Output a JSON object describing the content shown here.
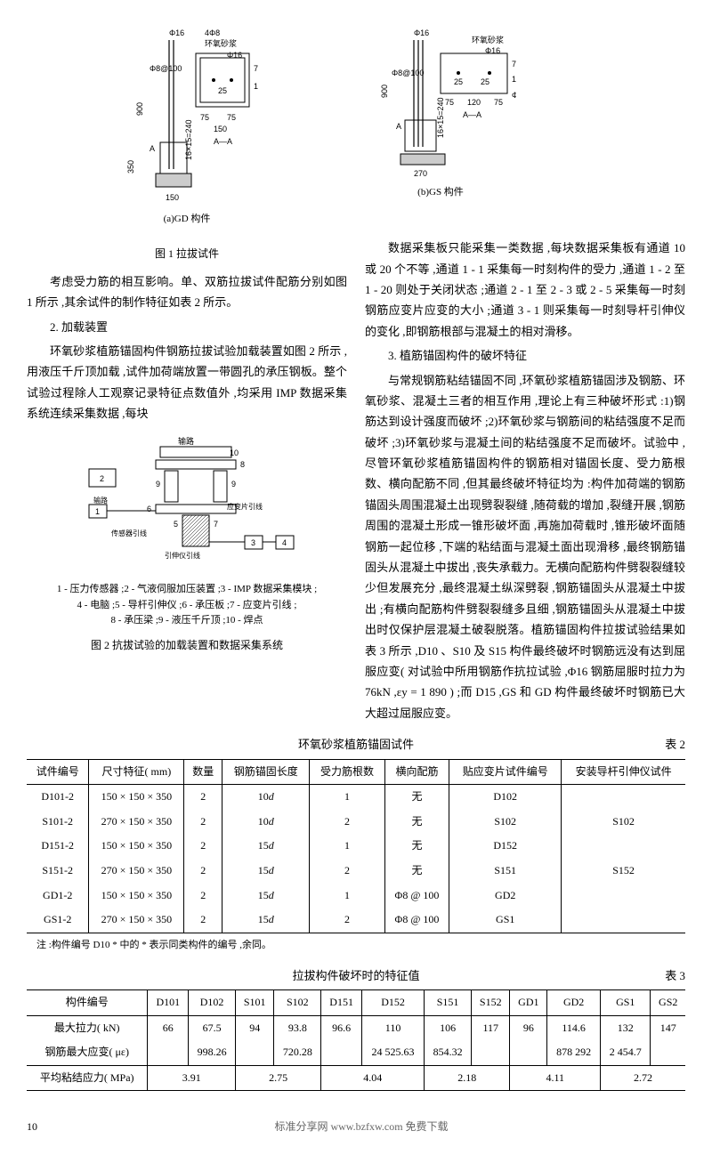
{
  "figures": {
    "fig1": {
      "caption": "图 1  拉拔试件",
      "sub_a": "(a)GD 构件",
      "sub_b": "(b)GS 构件",
      "labels": {
        "phi16": "Φ16",
        "4phi8": "4Φ8",
        "epoxy": "环氧砂浆",
        "phi8_100": "Φ8@100",
        "dim25": "25",
        "dim75": "75",
        "dim150": "150",
        "dim270": "270",
        "dim350": "350",
        "dim900": "900",
        "dim120": "120",
        "dim240": "240",
        "AA": "A—A",
        "A": "A",
        "t16x15": "16×15=240"
      }
    },
    "fig2": {
      "caption": "图 2  抗拔试验的加载装置和数据采集系统",
      "legend_lines": [
        "1 - 压力传感器 ;2 - 气液伺服加压装置 ;3 - IMP 数据采集模块 ;",
        "4 - 电脑 ;5 - 导杆引伸仪 ;6 - 承压板 ;7 - 应变片引线 ;",
        "8 - 承压梁 ;9 - 液压千斤顶 ;10 - 焊点"
      ],
      "labels": {
        "oil": "输路",
        "sensor_line": "传感器引线",
        "ext_line": "引伸仪引线",
        "strain_line": "应变片引线"
      }
    }
  },
  "body_text": {
    "left_p1": "考虑受力筋的相互影响。单、双筋拉拔试件配筋分别如图 1 所示 ,其余试件的制作特征如表 2 所示。",
    "left_sec2": "2. 加载装置",
    "left_p2": "环氧砂浆植筋锚固构件钢筋拉拔试验加载装置如图 2 所示 ,用液压千斤顶加载 ,试件加荷端放置一带圆孔的承压钢板。整个试验过程除人工观察记录特征点数值外 ,均采用 IMP 数据采集系统连续采集数据 ,每块",
    "right_p1": "数据采集板只能采集一类数据 ,每块数据采集板有通道 10 或 20 个不等 ,通道 1 - 1 采集每一时刻构件的受力 ,通道 1 - 2 至 1 - 20 则处于关闭状态 ;通道 2 - 1 至 2 - 3 或 2 - 5 采集每一时刻钢筋应变片应变的大小 ;通道 3 - 1 则采集每一时刻导杆引伸仪的变化 ,即钢筋根部与混凝土的相对滑移。",
    "right_sec3": "3. 植筋锚固构件的破坏特征",
    "right_p2": "与常规钢筋粘结锚固不同 ,环氧砂浆植筋锚固涉及钢筋、环氧砂浆、混凝土三者的相互作用 ,理论上有三种破坏形式 :1)钢筋达到设计强度而破坏 ;2)环氧砂浆与钢筋间的粘结强度不足而破坏 ;3)环氧砂浆与混凝土间的粘结强度不足而破坏。试验中 ,尽管环氧砂浆植筋锚固构件的钢筋相对锚固长度、受力筋根数、横向配筋不同 ,但其最终破坏特征均为 :构件加荷端的钢筋锚固头周围混凝土出现劈裂裂缝 ,随荷载的增加 ,裂缝开展 ,钢筋周围的混凝土形成一锥形破坏面 ,再施加荷载时 ,锥形破坏面随钢筋一起位移 ,下端的粘结面与混凝土面出现滑移 ,最终钢筋锚固头从混凝土中拔出 ,丧失承载力。无横向配筋构件劈裂裂缝较少但发展充分 ,最终混凝土纵深劈裂 ,钢筋锚固头从混凝土中拔出 ;有横向配筋构件劈裂裂缝多且细 ,钢筋锚固头从混凝土中拔出时仅保护层混凝土破裂脱落。植筋锚固构件拉拔试验结果如表 3 所示 ,D10 、S10 及 S15 构件最终破坏时钢筋远没有达到屈服应变( 对试验中所用钢筋作抗拉试验 ,Φ16 钢筋屈服时拉力为 76kN ,εy = 1 890 ) ;而 D15 ,GS 和 GD 构件最终破坏时钢筋已大大超过屈服应变。"
  },
  "table2": {
    "title": "环氧砂浆植筋锚固试件",
    "table_no": "表 2",
    "headers": [
      "试件编号",
      "尺寸特征( mm)",
      "数量",
      "钢筋锚固长度",
      "受力筋根数",
      "横向配筋",
      "贴应变片试件编号",
      "安装导杆引伸仪试件"
    ],
    "rows": [
      [
        "D101-2",
        "150 × 150 × 350",
        "2",
        "10d",
        "1",
        "无",
        "D102",
        ""
      ],
      [
        "S101-2",
        "270 × 150 × 350",
        "2",
        "10d",
        "2",
        "无",
        "S102",
        "S102"
      ],
      [
        "D151-2",
        "150 × 150 × 350",
        "2",
        "15d",
        "1",
        "无",
        "D152",
        ""
      ],
      [
        "S151-2",
        "270 × 150 × 350",
        "2",
        "15d",
        "2",
        "无",
        "S151",
        "S152"
      ],
      [
        "GD1-2",
        "150 × 150 × 350",
        "2",
        "15d",
        "1",
        "Φ8 @ 100",
        "GD2",
        ""
      ],
      [
        "GS1-2",
        "270 × 150 × 350",
        "2",
        "15d",
        "2",
        "Φ8 @ 100",
        "GS1",
        ""
      ]
    ],
    "note": "注 :构件编号 D10 * 中的 * 表示同类构件的编号 ,余同。"
  },
  "table3": {
    "title": "拉拔构件破坏时的特征值",
    "table_no": "表 3",
    "headers": [
      "构件编号",
      "D101",
      "D102",
      "S101",
      "S102",
      "D151",
      "D152",
      "S151",
      "S152",
      "GD1",
      "GD2",
      "GS1",
      "GS2"
    ],
    "row1_label": "最大拉力( kN)",
    "row1": [
      "66",
      "67.5",
      "94",
      "93.8",
      "96.6",
      "110",
      "106",
      "117",
      "96",
      "114.6",
      "132",
      "147"
    ],
    "row2_label": "钢筋最大应变( με)",
    "row2": [
      "",
      "998.26",
      "",
      "720.28",
      "",
      "24 525.63",
      "854.32",
      "",
      "",
      "878 292",
      "2 454.7",
      ""
    ],
    "row3_label": "平均粘结应力( MPa)",
    "row3": [
      "3.91",
      "2.75",
      "4.04",
      "2.18",
      "4.11",
      "2.72"
    ]
  },
  "footer": {
    "page": "10",
    "center": "标准分享网 www.bzfxw.com 免费下载"
  }
}
